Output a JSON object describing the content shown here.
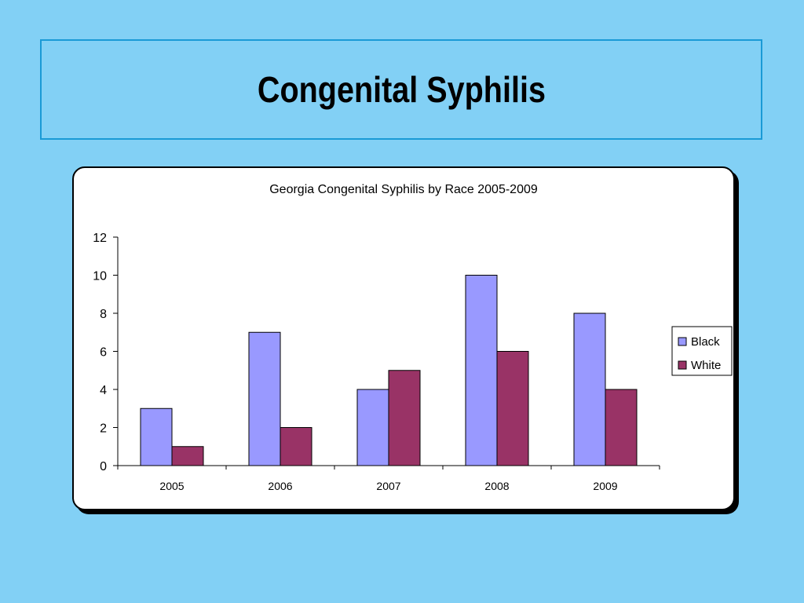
{
  "slide": {
    "title": "Congenital Syphilis"
  },
  "chart_data": {
    "type": "bar",
    "title": "Georgia Congenital Syphilis by Race 2005-2009",
    "xlabel": "",
    "ylabel": "",
    "categories": [
      "2005",
      "2006",
      "2007",
      "2008",
      "2009"
    ],
    "series": [
      {
        "name": "Black",
        "values": [
          3,
          7,
          4,
          10,
          8
        ],
        "color": "#9999ff"
      },
      {
        "name": "White",
        "values": [
          1,
          2,
          5,
          6,
          4
        ],
        "color": "#993366"
      }
    ],
    "ylim": [
      0,
      12
    ],
    "yticks": [
      0,
      2,
      4,
      6,
      8,
      10,
      12
    ],
    "grid": false,
    "legend": "right"
  },
  "colors": {
    "background": "#82d0f5",
    "title_border": "#1a9ad6"
  }
}
